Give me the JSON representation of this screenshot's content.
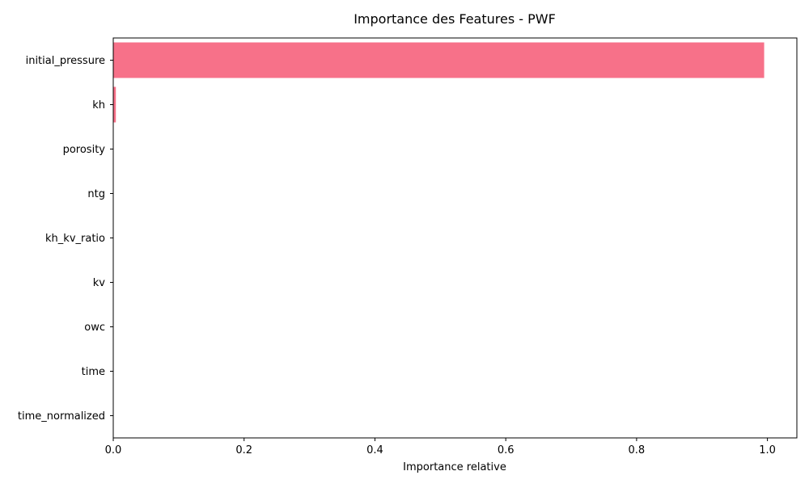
{
  "chart_data": {
    "type": "bar",
    "orientation": "horizontal",
    "title": "Importance des Features - PWF",
    "xlabel": "Importance relative",
    "ylabel": "",
    "categories": [
      "initial_pressure",
      "kh",
      "porosity",
      "ntg",
      "kh_kv_ratio",
      "kv",
      "owc",
      "time",
      "time_normalized"
    ],
    "values": [
      0.995,
      0.004,
      0.0,
      0.0,
      0.0,
      0.0,
      0.0,
      0.0,
      0.0
    ],
    "xlim": [
      0.0,
      1.045
    ],
    "xticks": [
      0.0,
      0.2,
      0.4,
      0.6,
      0.8,
      1.0
    ],
    "xtick_labels": [
      "0.0",
      "0.2",
      "0.4",
      "0.6",
      "0.8",
      "1.0"
    ],
    "bar_color": "#f77189",
    "grid": false,
    "legend": "none"
  }
}
